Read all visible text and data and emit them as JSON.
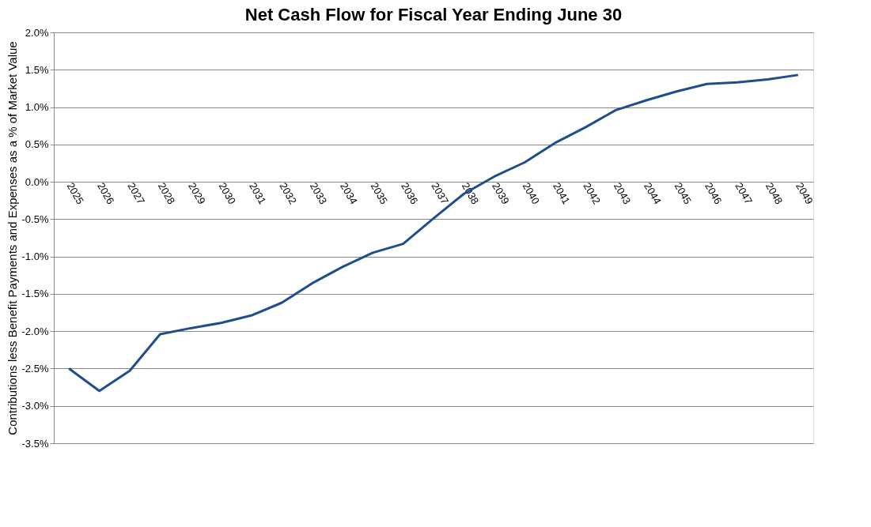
{
  "chart_data": {
    "type": "line",
    "title": "Net Cash Flow for Fiscal Year Ending June 30",
    "ylabel": "Contributions less Benefit Payments and Expenses as a % of Market Value",
    "categories": [
      "2025",
      "2026",
      "2027",
      "2028",
      "2029",
      "2030",
      "2031",
      "2032",
      "2033",
      "2034",
      "2035",
      "2036",
      "2037",
      "2038",
      "2039",
      "2040",
      "2041",
      "2042",
      "2043",
      "2044",
      "2045",
      "2046",
      "2047",
      "2048",
      "2049"
    ],
    "series": [
      {
        "color": "#1f4e8c",
        "values": [
          -2.5,
          -2.8,
          -2.53,
          -2.04,
          -1.96,
          -1.89,
          -1.79,
          -1.62,
          -1.36,
          -1.14,
          -0.95,
          -0.83,
          -0.49,
          -0.16,
          0.07,
          0.26,
          0.52,
          0.73,
          0.96,
          1.09,
          1.21,
          1.31,
          1.33,
          1.37,
          1.43
        ]
      }
    ],
    "ylim": [
      -3.5,
      2.0
    ],
    "yticks": [
      {
        "value": -3.5,
        "label": "-3.5%"
      },
      {
        "value": -3.0,
        "label": "-3.0%"
      },
      {
        "value": -2.5,
        "label": "-2.5%"
      },
      {
        "value": -2.0,
        "label": "-2.0%"
      },
      {
        "value": -1.5,
        "label": "-1.5%"
      },
      {
        "value": -1.0,
        "label": "-1.0%"
      },
      {
        "value": -0.5,
        "label": "-0.5%"
      },
      {
        "value": 0.0,
        "label": "0.0%"
      },
      {
        "value": 0.5,
        "label": "0.5%"
      },
      {
        "value": 1.0,
        "label": "1.0%"
      },
      {
        "value": 1.5,
        "label": "1.5%"
      },
      {
        "value": 2.0,
        "label": "2.0%"
      }
    ],
    "grid": "y",
    "marker": "none",
    "line_style": "solid"
  }
}
